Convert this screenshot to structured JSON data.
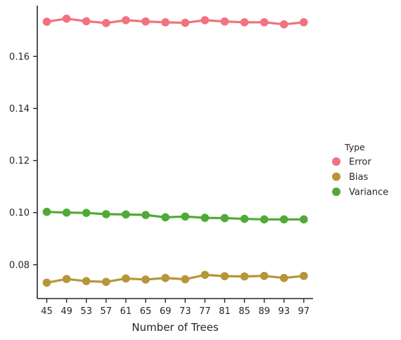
{
  "chart_data": {
    "type": "line",
    "xlabel": "Number of Trees",
    "ylabel": "",
    "categories": [
      "45",
      "49",
      "53",
      "57",
      "61",
      "65",
      "69",
      "73",
      "77",
      "81",
      "85",
      "89",
      "93",
      "97"
    ],
    "y_ticks": [
      0.08,
      0.1,
      0.12,
      0.14,
      0.16
    ],
    "y_tick_labels": [
      "0.08",
      "0.10",
      "0.12",
      "0.14",
      "0.16"
    ],
    "ylim": [
      0.067,
      0.1795
    ],
    "legend": {
      "title": "Type",
      "position": "right"
    },
    "series": [
      {
        "name": "Error",
        "color": "#f2727e",
        "values": [
          0.1733,
          0.1745,
          0.1735,
          0.1728,
          0.1739,
          0.1734,
          0.1731,
          0.1729,
          0.1739,
          0.1734,
          0.1731,
          0.1731,
          0.1723,
          0.1731
        ]
      },
      {
        "name": "Bias",
        "color": "#b59639",
        "values": [
          0.0731,
          0.0745,
          0.0737,
          0.0734,
          0.0747,
          0.0743,
          0.0749,
          0.0744,
          0.0761,
          0.0756,
          0.0755,
          0.0757,
          0.0749,
          0.0757
        ]
      },
      {
        "name": "Variance",
        "color": "#4faa37",
        "values": [
          0.1003,
          0.1,
          0.0999,
          0.0994,
          0.0993,
          0.0991,
          0.0982,
          0.0985,
          0.098,
          0.0979,
          0.0976,
          0.0974,
          0.0974,
          0.0974
        ]
      }
    ],
    "grid": false
  }
}
